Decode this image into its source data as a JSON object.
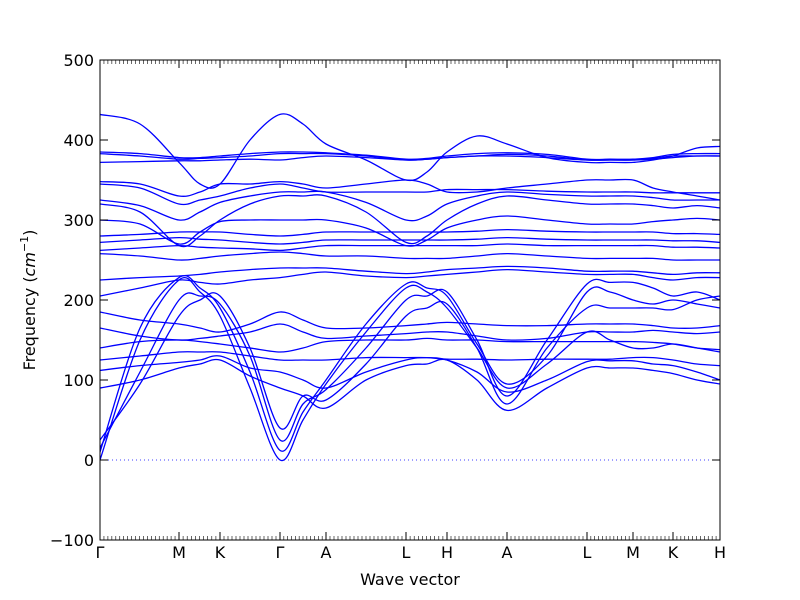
{
  "chart_data": {
    "type": "line",
    "title": "",
    "xlabel": "Wave vector",
    "ylabel": "Frequency",
    "ylabel_unit": "cm",
    "ylabel_exponent": "−1",
    "ylim": [
      -100,
      500
    ],
    "yticks": [
      -100,
      0,
      100,
      200,
      300,
      400,
      500
    ],
    "xlim": [
      0,
      620
    ],
    "xticks": [
      {
        "label": "Γ",
        "x": 0
      },
      {
        "label": "M",
        "x": 79
      },
      {
        "label": "K",
        "x": 120
      },
      {
        "label": "Γ",
        "x": 180
      },
      {
        "label": "A",
        "x": 226
      },
      {
        "label": "L",
        "x": 306
      },
      {
        "label": "H",
        "x": 347
      },
      {
        "label": "A",
        "x": 407
      },
      {
        "label": "L",
        "x": 487
      },
      {
        "label": "M",
        "x": 533
      },
      {
        "label": "K",
        "x": 573
      },
      {
        "label": "H",
        "x": 620
      }
    ],
    "zero_line": {
      "y": 0,
      "style": "dotted"
    },
    "line_color": "#0000ff",
    "series": [
      {
        "x": [
          0,
          40,
          79,
          100,
          120,
          150,
          180,
          203,
          226,
          266,
          306,
          327,
          347,
          377,
          407,
          447,
          487,
          510,
          533,
          553,
          573,
          597,
          620
        ],
        "y": [
          0,
          150,
          225,
          210,
          180,
          90,
          0,
          50,
          95,
          160,
          215,
          210,
          190,
          140,
          90,
          120,
          160,
          150,
          140,
          140,
          145,
          140,
          135
        ]
      },
      {
        "x": [
          0,
          40,
          79,
          100,
          120,
          150,
          180,
          203,
          226,
          266,
          306,
          327,
          347,
          377,
          407,
          447,
          487,
          510,
          533,
          553,
          573,
          597,
          620
        ],
        "y": [
          10,
          165,
          228,
          215,
          190,
          110,
          12,
          60,
          100,
          170,
          220,
          215,
          205,
          145,
          95,
          130,
          210,
          210,
          200,
          195,
          200,
          195,
          190
        ]
      },
      {
        "x": [
          0,
          40,
          79,
          100,
          120,
          150,
          180,
          203,
          226,
          266,
          306,
          327,
          347,
          377,
          407,
          447,
          487,
          510,
          533,
          553,
          573,
          597,
          620
        ],
        "y": [
          15,
          110,
          200,
          205,
          195,
          130,
          25,
          70,
          88,
          140,
          200,
          205,
          210,
          150,
          80,
          150,
          220,
          222,
          222,
          215,
          205,
          210,
          200
        ]
      },
      {
        "x": [
          0,
          40,
          79,
          100,
          120,
          150,
          180,
          203,
          226,
          266,
          306,
          327,
          347,
          377,
          407,
          447,
          487,
          510,
          533,
          553,
          573,
          597,
          620
        ],
        "y": [
          25,
          95,
          180,
          200,
          205,
          140,
          40,
          80,
          75,
          120,
          180,
          190,
          195,
          140,
          70,
          140,
          190,
          190,
          190,
          190,
          188,
          200,
          205
        ]
      },
      {
        "x": [
          0,
          40,
          79,
          100,
          120,
          150,
          180,
          203,
          226,
          266,
          306,
          327,
          347,
          377,
          407,
          447,
          487,
          510,
          533,
          553,
          573,
          597,
          620
        ],
        "y": [
          90,
          100,
          115,
          120,
          125,
          105,
          90,
          80,
          65,
          100,
          118,
          120,
          125,
          100,
          62,
          90,
          115,
          115,
          115,
          112,
          108,
          100,
          95
        ]
      },
      {
        "x": [
          0,
          40,
          79,
          100,
          120,
          150,
          180,
          203,
          226,
          266,
          306,
          327,
          347,
          377,
          407,
          447,
          487,
          510,
          533,
          553,
          573,
          597,
          620
        ],
        "y": [
          112,
          118,
          122,
          125,
          130,
          115,
          110,
          100,
          90,
          110,
          125,
          128,
          125,
          110,
          85,
          100,
          123,
          124,
          124,
          120,
          118,
          110,
          100
        ]
      },
      {
        "x": [
          0,
          40,
          79,
          100,
          120,
          150,
          180,
          203,
          226,
          266,
          306,
          327,
          347,
          377,
          407,
          447,
          487,
          510,
          533,
          553,
          573,
          597,
          620
        ],
        "y": [
          125,
          130,
          135,
          135,
          135,
          130,
          125,
          125,
          125,
          128,
          128,
          128,
          126,
          126,
          125,
          126,
          126,
          126,
          128,
          128,
          125,
          120,
          118
        ]
      },
      {
        "x": [
          0,
          40,
          79,
          100,
          120,
          150,
          180,
          203,
          226,
          266,
          306,
          327,
          347,
          377,
          407,
          447,
          487,
          510,
          533,
          553,
          573,
          597,
          620
        ],
        "y": [
          140,
          148,
          150,
          148,
          145,
          140,
          135,
          140,
          148,
          150,
          150,
          152,
          150,
          150,
          148,
          148,
          148,
          148,
          148,
          147,
          145,
          140,
          138
        ]
      },
      {
        "x": [
          0,
          40,
          79,
          100,
          120,
          150,
          180,
          203,
          226,
          266,
          306,
          327,
          347,
          377,
          407,
          447,
          487,
          510,
          533,
          553,
          573,
          597,
          620
        ],
        "y": [
          165,
          155,
          150,
          152,
          155,
          160,
          170,
          160,
          152,
          155,
          158,
          160,
          160,
          155,
          150,
          152,
          160,
          160,
          160,
          162,
          160,
          158,
          160
        ]
      },
      {
        "x": [
          0,
          40,
          79,
          100,
          120,
          150,
          180,
          203,
          226,
          266,
          306,
          327,
          347,
          377,
          407,
          447,
          487,
          510,
          533,
          553,
          573,
          597,
          620
        ],
        "y": [
          185,
          175,
          170,
          165,
          160,
          170,
          185,
          175,
          165,
          165,
          168,
          170,
          172,
          170,
          168,
          168,
          170,
          170,
          170,
          168,
          165,
          165,
          168
        ]
      },
      {
        "x": [
          0,
          40,
          79,
          100,
          120,
          150,
          180,
          203,
          226,
          266,
          306,
          327,
          347,
          377,
          407,
          447,
          487,
          510,
          533,
          553,
          573,
          597,
          620
        ],
        "y": [
          205,
          215,
          225,
          222,
          220,
          225,
          228,
          232,
          235,
          230,
          228,
          230,
          232,
          235,
          238,
          235,
          232,
          232,
          232,
          228,
          225,
          228,
          228
        ]
      },
      {
        "x": [
          0,
          40,
          79,
          100,
          120,
          150,
          180,
          203,
          226,
          266,
          306,
          327,
          347,
          377,
          407,
          447,
          487,
          510,
          533,
          553,
          573,
          597,
          620
        ],
        "y": [
          225,
          228,
          230,
          232,
          235,
          238,
          240,
          240,
          240,
          236,
          233,
          235,
          238,
          240,
          242,
          240,
          236,
          236,
          236,
          234,
          232,
          234,
          234
        ]
      },
      {
        "x": [
          0,
          40,
          79,
          100,
          120,
          150,
          180,
          203,
          226,
          266,
          306,
          327,
          347,
          377,
          407,
          447,
          487,
          510,
          533,
          553,
          573,
          597,
          620
        ],
        "y": [
          258,
          255,
          250,
          252,
          255,
          258,
          260,
          258,
          255,
          255,
          252,
          252,
          252,
          255,
          258,
          255,
          252,
          252,
          252,
          252,
          250,
          250,
          250
        ]
      },
      {
        "x": [
          0,
          40,
          79,
          100,
          120,
          150,
          180,
          203,
          226,
          266,
          306,
          327,
          347,
          377,
          407,
          447,
          487,
          510,
          533,
          553,
          573,
          597,
          620
        ],
        "y": [
          262,
          265,
          268,
          266,
          265,
          264,
          262,
          265,
          268,
          268,
          268,
          268,
          268,
          268,
          270,
          268,
          268,
          268,
          268,
          268,
          266,
          266,
          265
        ]
      },
      {
        "x": [
          0,
          40,
          79,
          100,
          120,
          150,
          180,
          203,
          226,
          266,
          306,
          327,
          347,
          377,
          407,
          447,
          487,
          510,
          533,
          553,
          573,
          597,
          620
        ],
        "y": [
          272,
          275,
          278,
          276,
          275,
          272,
          270,
          272,
          275,
          275,
          275,
          275,
          275,
          276,
          278,
          276,
          275,
          275,
          275,
          275,
          274,
          274,
          272
        ]
      },
      {
        "x": [
          0,
          40,
          79,
          100,
          120,
          150,
          180,
          203,
          226,
          266,
          306,
          327,
          347,
          377,
          407,
          447,
          487,
          510,
          533,
          553,
          573,
          597,
          620
        ],
        "y": [
          280,
          282,
          285,
          285,
          285,
          282,
          280,
          282,
          285,
          285,
          285,
          285,
          285,
          286,
          288,
          286,
          285,
          285,
          285,
          285,
          283,
          283,
          282
        ]
      },
      {
        "x": [
          0,
          40,
          79,
          100,
          120,
          150,
          180,
          203,
          226,
          266,
          306,
          327,
          347,
          377,
          407,
          447,
          487,
          510,
          533,
          553,
          573,
          597,
          620
        ],
        "y": [
          300,
          295,
          270,
          285,
          298,
          300,
          300,
          300,
          300,
          290,
          268,
          275,
          290,
          300,
          305,
          300,
          295,
          295,
          295,
          298,
          300,
          302,
          300
        ]
      },
      {
        "x": [
          0,
          40,
          79,
          100,
          120,
          150,
          180,
          203,
          226,
          266,
          306,
          327,
          347,
          377,
          407,
          447,
          487,
          510,
          533,
          553,
          573,
          597,
          620
        ],
        "y": [
          320,
          310,
          268,
          280,
          300,
          320,
          330,
          330,
          330,
          310,
          272,
          280,
          300,
          320,
          330,
          325,
          320,
          320,
          320,
          318,
          315,
          318,
          315
        ]
      },
      {
        "x": [
          0,
          40,
          79,
          100,
          120,
          150,
          180,
          203,
          226,
          266,
          306,
          327,
          347,
          377,
          407,
          447,
          487,
          510,
          533,
          553,
          573,
          597,
          620
        ],
        "y": [
          325,
          318,
          300,
          310,
          322,
          330,
          335,
          335,
          335,
          322,
          300,
          305,
          320,
          330,
          335,
          332,
          330,
          330,
          330,
          328,
          325,
          325,
          325
        ]
      },
      {
        "x": [
          0,
          40,
          79,
          100,
          120,
          150,
          180,
          203,
          226,
          266,
          306,
          327,
          347,
          377,
          407,
          447,
          487,
          510,
          533,
          553,
          573,
          597,
          620
        ],
        "y": [
          345,
          340,
          320,
          325,
          330,
          340,
          345,
          340,
          335,
          335,
          335,
          335,
          338,
          338,
          338,
          336,
          335,
          335,
          335,
          334,
          334,
          334,
          334
        ]
      },
      {
        "x": [
          0,
          40,
          79,
          100,
          120,
          150,
          180,
          203,
          226,
          266,
          306,
          327,
          347,
          377,
          407,
          447,
          487,
          510,
          533,
          553,
          573,
          597,
          620
        ],
        "y": [
          348,
          345,
          330,
          335,
          345,
          345,
          348,
          345,
          340,
          345,
          350,
          345,
          335,
          335,
          340,
          345,
          350,
          350,
          350,
          340,
          335,
          330,
          325
        ]
      },
      {
        "x": [
          0,
          40,
          79,
          100,
          120,
          150,
          180,
          203,
          226,
          266,
          306,
          327,
          347,
          377,
          407,
          447,
          487,
          510,
          533,
          553,
          573,
          597,
          620
        ],
        "y": [
          372,
          373,
          374,
          374,
          375,
          376,
          375,
          378,
          380,
          378,
          375,
          376,
          378,
          380,
          380,
          378,
          375,
          375,
          375,
          376,
          378,
          380,
          380
        ]
      },
      {
        "x": [
          0,
          40,
          79,
          100,
          120,
          150,
          180,
          203,
          226,
          266,
          306,
          327,
          347,
          377,
          407,
          447,
          487,
          510,
          533,
          553,
          573,
          597,
          620
        ],
        "y": [
          383,
          380,
          376,
          377,
          378,
          380,
          383,
          383,
          383,
          380,
          375,
          376,
          378,
          380,
          382,
          380,
          375,
          375,
          375,
          377,
          380,
          380,
          380
        ]
      },
      {
        "x": [
          0,
          40,
          79,
          100,
          120,
          150,
          180,
          203,
          226,
          266,
          306,
          327,
          347,
          377,
          407,
          447,
          487,
          510,
          533,
          553,
          573,
          597,
          620
        ],
        "y": [
          385,
          383,
          378,
          378,
          380,
          383,
          385,
          385,
          384,
          381,
          376,
          377,
          380,
          383,
          384,
          382,
          376,
          376,
          376,
          378,
          382,
          383,
          383
        ]
      },
      {
        "x": [
          0,
          40,
          79,
          100,
          120,
          150,
          180,
          203,
          226,
          266,
          306,
          327,
          347,
          377,
          407,
          447,
          487,
          510,
          533,
          553,
          573,
          597,
          620
        ],
        "y": [
          432,
          420,
          372,
          345,
          345,
          400,
          432,
          420,
          395,
          375,
          350,
          360,
          385,
          405,
          395,
          378,
          372,
          372,
          372,
          375,
          380,
          390,
          392
        ]
      }
    ]
  }
}
